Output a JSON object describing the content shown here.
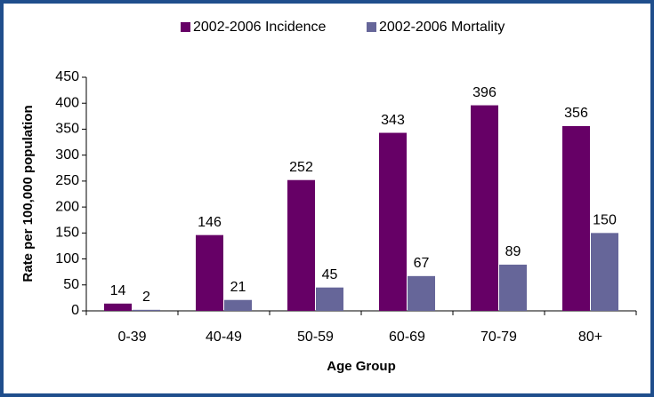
{
  "chart_data": {
    "type": "bar",
    "x_label": "Age Group",
    "y_label": "Rate per 100,000 population",
    "categories": [
      "0-39",
      "40-49",
      "50-59",
      "60-69",
      "70-79",
      "80+"
    ],
    "series": [
      {
        "name": "2002-2006 Incidence",
        "color": "#660066",
        "values": [
          14,
          146,
          252,
          343,
          396,
          356
        ]
      },
      {
        "name": "2002-2006 Mortality",
        "color": "#666699",
        "values": [
          2,
          21,
          45,
          67,
          89,
          150
        ]
      }
    ],
    "ylim": [
      0,
      450
    ],
    "yticks": [
      0,
      50,
      100,
      150,
      200,
      250,
      300,
      350,
      400,
      450
    ]
  }
}
